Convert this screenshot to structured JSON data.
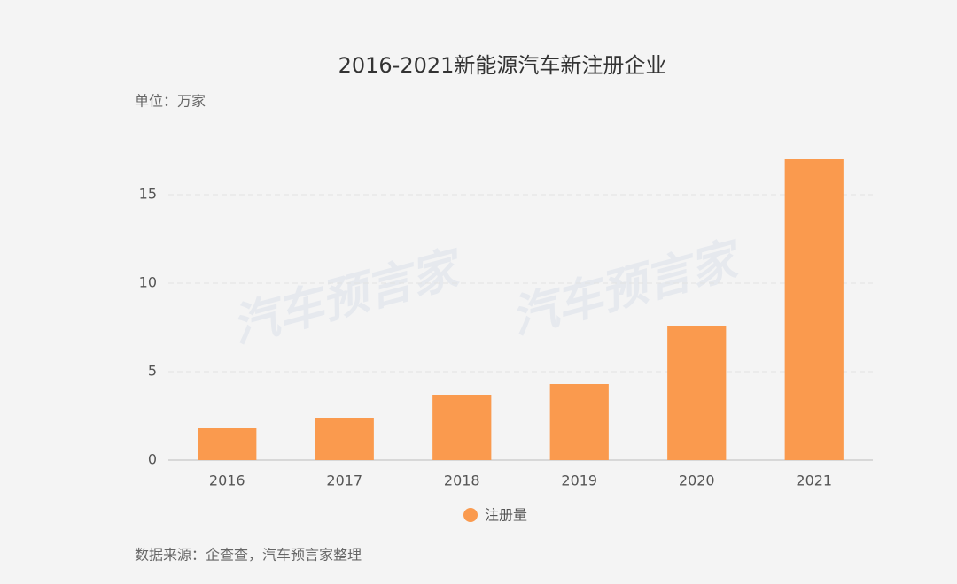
{
  "chart_data": {
    "type": "bar",
    "title": "2016-2021新能源汽车新注册企业",
    "unit_label": "单位：万家",
    "categories": [
      "2016",
      "2017",
      "2018",
      "2019",
      "2020",
      "2021"
    ],
    "series": [
      {
        "name": "注册量",
        "color": "#fa9a4e",
        "values": [
          1.8,
          2.4,
          3.7,
          4.3,
          7.6,
          17.0
        ]
      }
    ],
    "ylim": [
      0,
      18
    ],
    "yticks": [
      0,
      5,
      10,
      15
    ],
    "grid": true,
    "legend": "bottom",
    "source": "数据来源：企查查，汽车预言家整理",
    "watermark": "汽车预言家"
  }
}
